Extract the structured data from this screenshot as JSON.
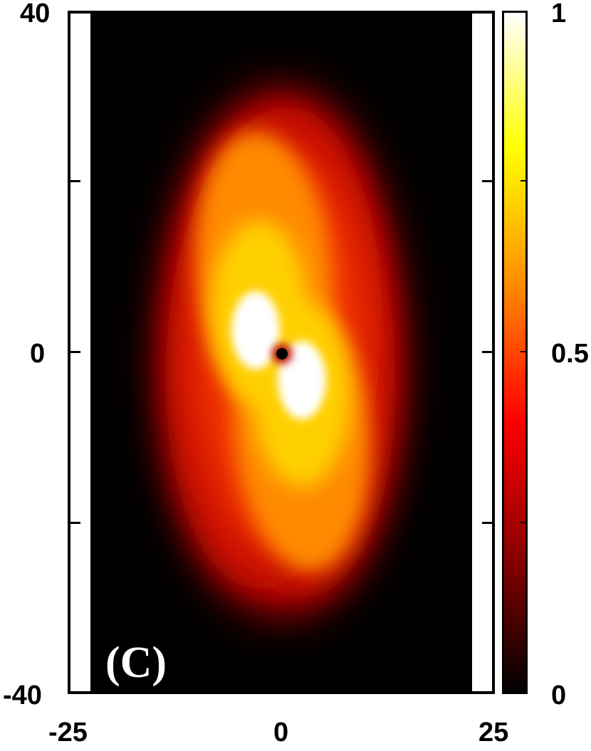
{
  "chart_data": {
    "type": "heatmap",
    "panel_label": "(C)",
    "x_ticks": [
      "-25",
      "0",
      "25"
    ],
    "y_ticks": [
      "40",
      "0",
      "-40"
    ],
    "colorbar_ticks": [
      "1",
      "0.5",
      "0"
    ],
    "xlim": [
      -25,
      25
    ],
    "ylim": [
      -40,
      40
    ],
    "colorbar_range": [
      0,
      1
    ],
    "colormap": [
      "#000000",
      "#8b0000",
      "#ff0000",
      "#ff8c00",
      "#ffff00",
      "#ffffff"
    ],
    "data_extent_x": [
      -22.5,
      22.5
    ],
    "features": [
      {
        "name": "bright-lobe-upper-left",
        "x": -3,
        "y": 3.5,
        "value": 1.0
      },
      {
        "name": "bright-lobe-lower-right",
        "x": 2,
        "y": -3.5,
        "value": 1.0
      },
      {
        "name": "dark-core",
        "x": 0,
        "y": 0,
        "value": 0.0
      }
    ],
    "grid": false
  }
}
